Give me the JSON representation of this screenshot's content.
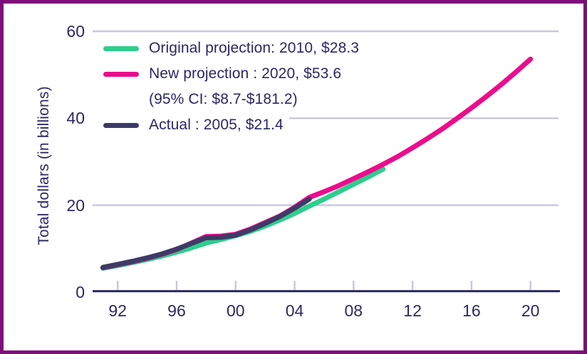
{
  "figure": {
    "border_color": "#7d0e79",
    "background_color": "#ffffff",
    "text_color": "#2b2766",
    "grid_color": "#c9c6dc",
    "axis_color": "#2b2766"
  },
  "chart_data": {
    "type": "line",
    "title": "",
    "xlabel": "",
    "ylabel": "Total dollars (in billions)",
    "ylim": [
      0,
      60
    ],
    "xlim": [
      1990.3,
      2021.9
    ],
    "grid": "horizontal",
    "legend_position": "top-left",
    "yticks": [
      {
        "value": 0,
        "label": "0"
      },
      {
        "value": 20,
        "label": "20"
      },
      {
        "value": 40,
        "label": "40"
      },
      {
        "value": 60,
        "label": "60"
      }
    ],
    "xticks": [
      {
        "value": 1992,
        "label": "92"
      },
      {
        "value": 1996,
        "label": "96"
      },
      {
        "value": 2000,
        "label": "00"
      },
      {
        "value": 2004,
        "label": "04"
      },
      {
        "value": 2008,
        "label": "08"
      },
      {
        "value": 2012,
        "label": "12"
      },
      {
        "value": 2016,
        "label": "16"
      },
      {
        "value": 2020,
        "label": "20"
      }
    ],
    "series": [
      {
        "id": "original-projection",
        "legend_label": "Original projection: 2010, $28.3",
        "color": "#2dce8d",
        "x": [
          1991,
          1992,
          1993,
          1994,
          1995,
          1996,
          1997,
          1998,
          1999,
          2000,
          2001,
          2002,
          2003,
          2004,
          2005,
          2006,
          2007,
          2008,
          2009,
          2010
        ],
        "y": [
          5.5,
          6.1,
          6.8,
          7.5,
          8.3,
          9.2,
          10.2,
          11.3,
          12.1,
          13.0,
          14.0,
          15.2,
          16.6,
          18.1,
          19.8,
          21.4,
          23.1,
          24.8,
          26.5,
          28.3
        ]
      },
      {
        "id": "new-projection",
        "legend_label": "New projection : 2020, $53.6",
        "legend_sublabel": "(95% CI: $8.7-$181.2)",
        "color": "#ec0c8c",
        "x": [
          1991,
          1992,
          1993,
          1994,
          1995,
          1996,
          1997,
          1998,
          1999,
          2000,
          2001,
          2002,
          2003,
          2004,
          2005,
          2006,
          2007,
          2008,
          2009,
          2010,
          2011,
          2012,
          2013,
          2014,
          2015,
          2016,
          2017,
          2018,
          2019,
          2020
        ],
        "y": [
          5.6,
          6.3,
          7.0,
          7.8,
          8.7,
          9.8,
          11.3,
          12.8,
          12.9,
          13.3,
          14.5,
          16.0,
          17.5,
          19.5,
          21.8,
          23.1,
          24.5,
          26.1,
          27.7,
          29.4,
          31.2,
          33.2,
          35.3,
          37.5,
          39.9,
          42.4,
          45.0,
          47.7,
          50.6,
          53.6
        ]
      },
      {
        "id": "actual",
        "legend_label": "Actual : 2005, $21.4",
        "color": "#3e3a66",
        "x": [
          1991,
          1992,
          1993,
          1994,
          1995,
          1996,
          1997,
          1998,
          1999,
          2000,
          2001,
          2002,
          2003,
          2004,
          2005
        ],
        "y": [
          5.7,
          6.4,
          7.1,
          7.9,
          8.8,
          9.9,
          11.2,
          12.5,
          12.6,
          13.1,
          14.3,
          15.8,
          17.4,
          19.3,
          21.4
        ]
      }
    ]
  }
}
